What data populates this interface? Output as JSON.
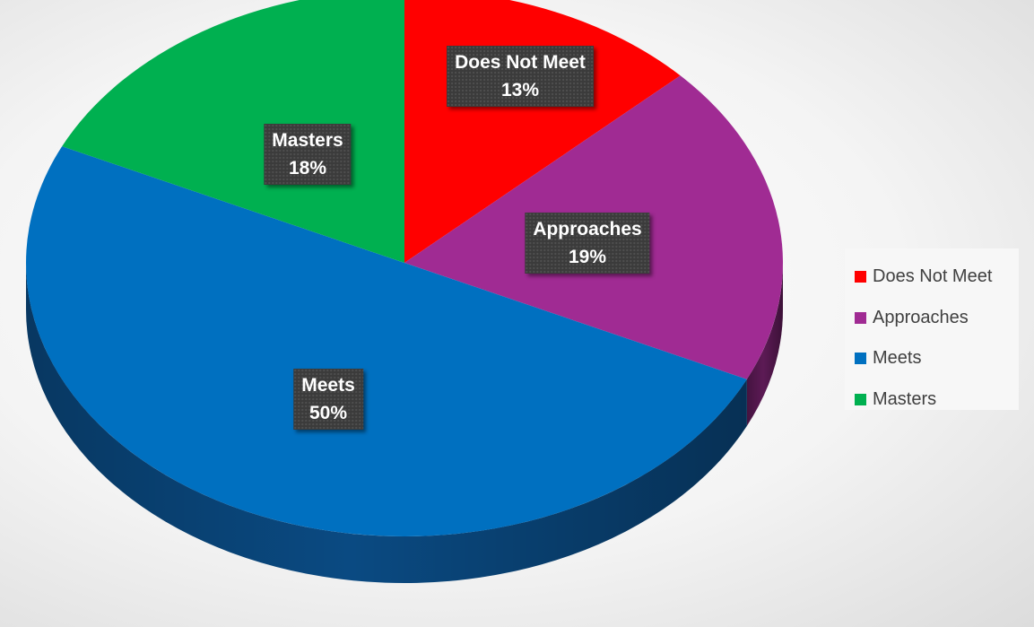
{
  "chart_data": {
    "type": "pie",
    "categories": [
      "Does Not Meet",
      "Approaches",
      "Meets",
      "Masters"
    ],
    "values": [
      13,
      19,
      50,
      18
    ],
    "data_labels": [
      "13%",
      "19%",
      "50%",
      "18%"
    ],
    "colors": [
      "#ff0000",
      "#a02b93",
      "#0070c0",
      "#00b050"
    ],
    "side_colors": [
      "#a30000",
      "#5c1a55",
      "#0a4a82",
      "#00733a"
    ],
    "legend_position": "right",
    "style": "3d"
  }
}
